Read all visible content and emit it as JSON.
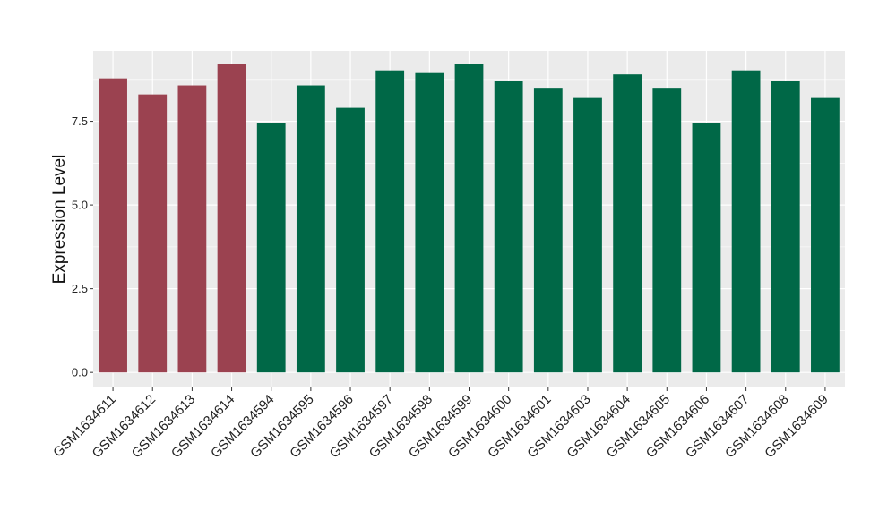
{
  "chart_data": {
    "type": "bar",
    "title": "",
    "xlabel": "",
    "ylabel": "Expression Level",
    "ylim": [
      -0.45,
      9.6
    ],
    "yticks": [
      0.0,
      2.5,
      5.0,
      7.5
    ],
    "ytick_labels": [
      "0.0",
      "2.5",
      "5.0",
      "7.5"
    ],
    "grid": true,
    "legend": "none",
    "categories": [
      "GSM1634611",
      "GSM1634612",
      "GSM1634613",
      "GSM1634614",
      "GSM1634594",
      "GSM1634595",
      "GSM1634596",
      "GSM1634597",
      "GSM1634598",
      "GSM1634599",
      "GSM1634600",
      "GSM1634601",
      "GSM1634603",
      "GSM1634604",
      "GSM1634605",
      "GSM1634606",
      "GSM1634607",
      "GSM1634608",
      "GSM1634609"
    ],
    "values": [
      8.78,
      8.3,
      8.57,
      9.2,
      7.44,
      8.57,
      7.9,
      9.02,
      8.94,
      9.2,
      8.7,
      8.5,
      8.22,
      8.9,
      8.5,
      7.44,
      9.02,
      8.7,
      8.22
    ],
    "groups": [
      0,
      0,
      0,
      0,
      1,
      1,
      1,
      1,
      1,
      1,
      1,
      1,
      1,
      1,
      1,
      1,
      1,
      1,
      1
    ],
    "colors": {
      "group_0": "#9b4250",
      "group_1": "#006847",
      "panel": "#ebebeb",
      "grid": "#ffffff"
    }
  }
}
